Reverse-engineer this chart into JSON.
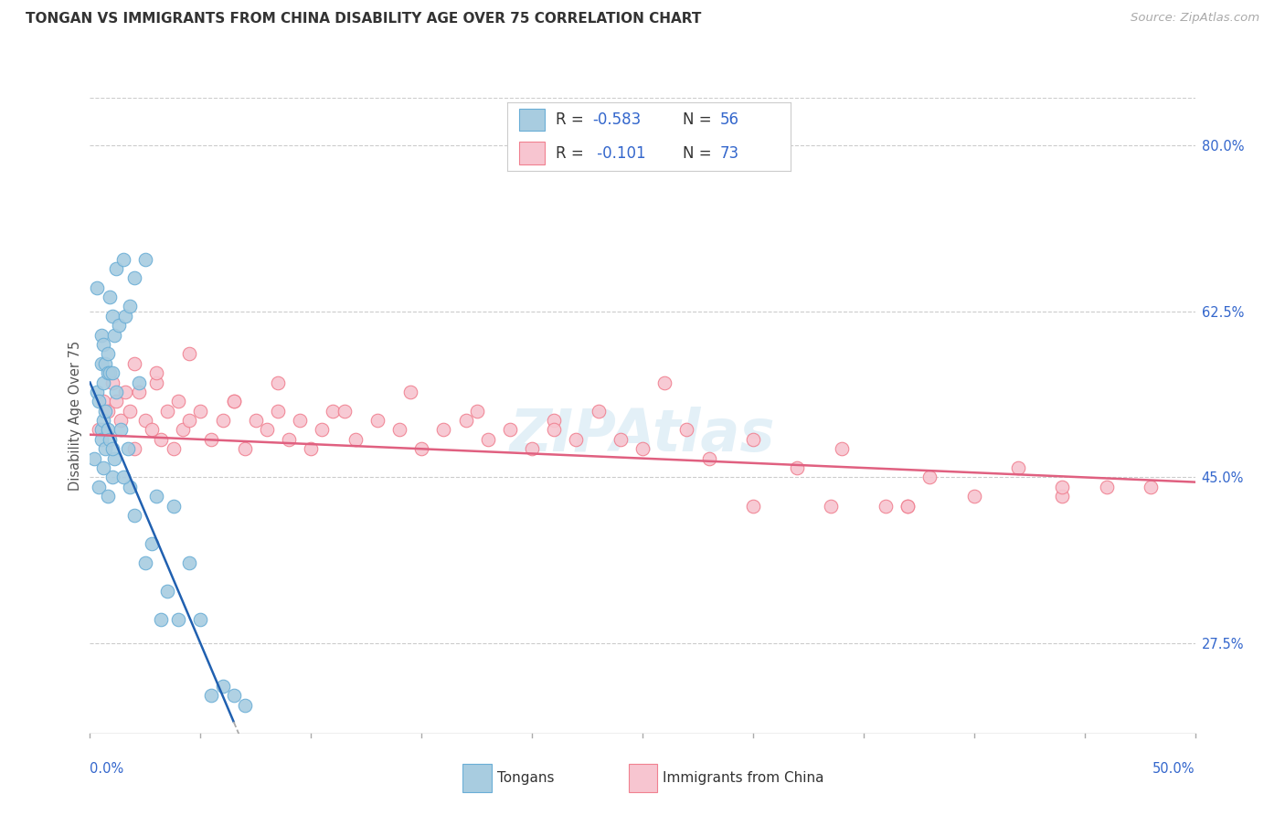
{
  "title": "TONGAN VS IMMIGRANTS FROM CHINA DISABILITY AGE OVER 75 CORRELATION CHART",
  "source": "Source: ZipAtlas.com",
  "ylabel": "Disability Age Over 75",
  "xlim": [
    0.0,
    50.0
  ],
  "ylim": [
    18.0,
    85.0
  ],
  "ytick_vals": [
    27.5,
    45.0,
    62.5,
    80.0
  ],
  "blue_color": "#a8cce0",
  "blue_edge": "#6aaed6",
  "pink_color": "#f7c5d0",
  "pink_edge": "#f08090",
  "line_blue_color": "#2060b0",
  "line_pink_color": "#e06080",
  "blue_line_x0": 0.0,
  "blue_line_y0": 55.0,
  "blue_line_slope": -5.5,
  "blue_line_xend": 6.5,
  "blue_dash_xend": 11.0,
  "pink_line_x0": 0.0,
  "pink_line_y0": 49.5,
  "pink_line_slope": -0.1,
  "pink_line_xend": 50.0,
  "tongan_x": [
    0.2,
    0.3,
    0.3,
    0.4,
    0.5,
    0.5,
    0.5,
    0.5,
    0.6,
    0.6,
    0.6,
    0.7,
    0.7,
    0.7,
    0.8,
    0.8,
    0.8,
    0.9,
    0.9,
    0.9,
    1.0,
    1.0,
    1.0,
    1.1,
    1.1,
    1.2,
    1.3,
    1.4,
    1.5,
    1.6,
    1.7,
    1.8,
    1.8,
    2.0,
    2.2,
    2.5,
    2.8,
    3.0,
    3.5,
    3.8,
    4.0,
    4.5,
    5.0,
    5.5,
    6.0,
    6.5,
    7.0,
    0.4,
    0.6,
    0.8,
    1.0,
    1.2,
    1.5,
    2.0,
    2.5,
    3.2
  ],
  "tongan_y": [
    47.0,
    65.0,
    54.0,
    53.0,
    60.0,
    57.0,
    50.0,
    49.0,
    59.0,
    55.0,
    51.0,
    57.0,
    52.0,
    48.0,
    58.0,
    56.0,
    50.0,
    64.0,
    56.0,
    49.0,
    62.0,
    56.0,
    45.0,
    60.0,
    47.0,
    67.0,
    61.0,
    50.0,
    68.0,
    62.0,
    48.0,
    63.0,
    44.0,
    66.0,
    55.0,
    68.0,
    38.0,
    43.0,
    33.0,
    42.0,
    30.0,
    36.0,
    30.0,
    22.0,
    23.0,
    22.0,
    21.0,
    44.0,
    46.0,
    43.0,
    48.0,
    54.0,
    45.0,
    41.0,
    36.0,
    30.0
  ],
  "china_x": [
    0.4,
    0.6,
    0.8,
    1.0,
    1.2,
    1.4,
    1.6,
    1.8,
    2.0,
    2.2,
    2.5,
    2.8,
    3.0,
    3.2,
    3.5,
    3.8,
    4.0,
    4.2,
    4.5,
    5.0,
    5.5,
    6.0,
    6.5,
    7.0,
    7.5,
    8.0,
    8.5,
    9.0,
    9.5,
    10.0,
    10.5,
    11.0,
    12.0,
    13.0,
    14.0,
    15.0,
    16.0,
    17.0,
    18.0,
    19.0,
    20.0,
    21.0,
    22.0,
    23.0,
    25.0,
    27.0,
    28.0,
    30.0,
    32.0,
    34.0,
    36.0,
    37.0,
    38.0,
    40.0,
    42.0,
    44.0,
    46.0,
    48.0,
    2.0,
    3.0,
    4.5,
    6.5,
    8.5,
    11.5,
    14.5,
    17.5,
    21.0,
    24.0,
    26.0,
    30.0,
    33.5,
    37.0,
    44.0
  ],
  "china_y": [
    50.0,
    53.0,
    52.0,
    55.0,
    53.0,
    51.0,
    54.0,
    52.0,
    48.0,
    54.0,
    51.0,
    50.0,
    55.0,
    49.0,
    52.0,
    48.0,
    53.0,
    50.0,
    51.0,
    52.0,
    49.0,
    51.0,
    53.0,
    48.0,
    51.0,
    50.0,
    52.0,
    49.0,
    51.0,
    48.0,
    50.0,
    52.0,
    49.0,
    51.0,
    50.0,
    48.0,
    50.0,
    51.0,
    49.0,
    50.0,
    48.0,
    51.0,
    49.0,
    52.0,
    48.0,
    50.0,
    47.0,
    49.0,
    46.0,
    48.0,
    42.0,
    42.0,
    45.0,
    43.0,
    46.0,
    43.0,
    44.0,
    44.0,
    57.0,
    56.0,
    58.0,
    53.0,
    55.0,
    52.0,
    54.0,
    52.0,
    50.0,
    49.0,
    55.0,
    42.0,
    42.0,
    42.0,
    44.0
  ]
}
